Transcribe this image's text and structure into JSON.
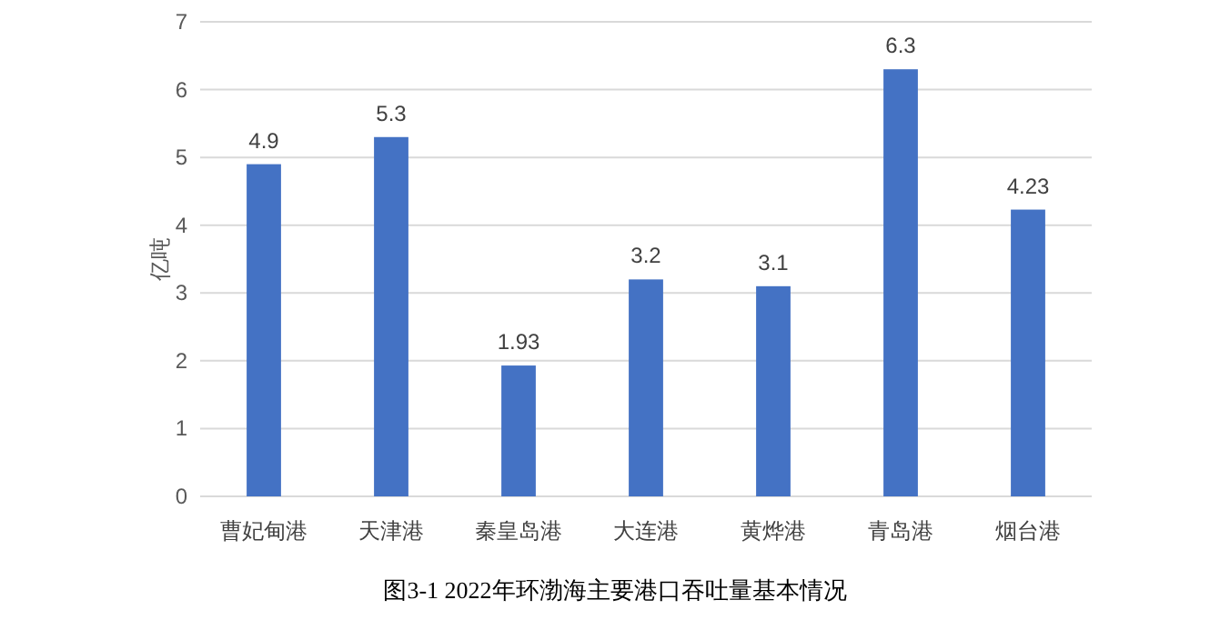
{
  "chart_data": {
    "type": "bar",
    "title": "图3-1 2022年环渤海主要港口吞吐量基本情况",
    "ylabel": "亿吨",
    "categories": [
      "曹妃甸港",
      "天津港",
      "秦皇岛港",
      "大连港",
      "黄烨港",
      "青岛港",
      "烟台港"
    ],
    "values": [
      4.9,
      5.3,
      1.93,
      3.2,
      3.1,
      6.3,
      4.23
    ],
    "color": "#4472c4",
    "ylim": [
      0,
      7
    ],
    "yticks": [
      0,
      1,
      2,
      3,
      4,
      5,
      6,
      7
    ],
    "grid": "y",
    "data_labels": true
  }
}
